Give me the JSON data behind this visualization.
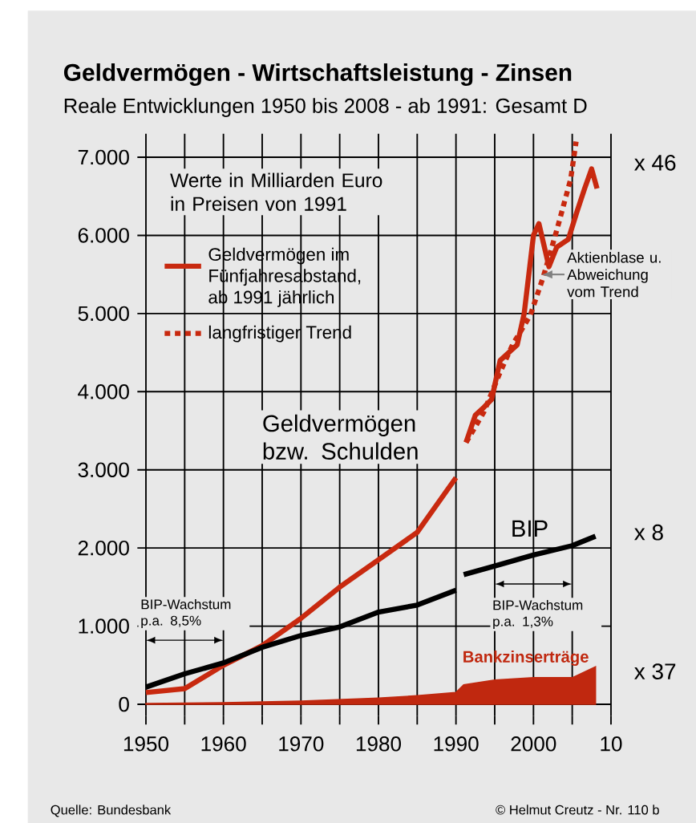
{
  "chart_data": {
    "type": "line",
    "title": "Geldvermögen - Wirtschaftsleistung - Zinsen",
    "subtitle": "Reale Entwicklungen 1950 bis 2008  -  ab 1991: Gesamt D",
    "xlim": [
      1950,
      2010
    ],
    "ylim": [
      -150,
      7300
    ],
    "xticks": [
      1950,
      {
        "value": 1955,
        "label": null
      },
      1960,
      {
        "value": 1965,
        "label": null
      },
      1970,
      {
        "value": 1975,
        "label": null
      },
      1980,
      {
        "value": 1985,
        "label": null
      },
      1990,
      {
        "value": 1995,
        "label": null
      },
      2000,
      {
        "value": 2005,
        "label": null
      },
      {
        "value": 2010,
        "label": "10"
      }
    ],
    "yticks": [
      0,
      {
        "value": 1000,
        "label": "1.000"
      },
      {
        "value": 2000,
        "label": "2.000"
      },
      {
        "value": 3000,
        "label": "3.000"
      },
      {
        "value": 4000,
        "label": "4.000"
      },
      {
        "value": 5000,
        "label": "5.000"
      },
      {
        "value": 6000,
        "label": "6.000"
      },
      {
        "value": 7000,
        "label": "7.000"
      }
    ],
    "grid": true,
    "legend": "top left",
    "marker": "none",
    "series": [
      {
        "name": "Geldvermögen im Fünfjahresabstand, ab 1991 jährlich",
        "color": "#c8290f",
        "line_style": "solid",
        "x": [
          1950,
          1955,
          1960,
          1965,
          1970,
          1975,
          1980,
          1985,
          1990,
          1990.5,
          1991.3,
          1992.5,
          1993.6,
          1994.6,
          1995.7,
          1996.8,
          1997.9,
          1998.8,
          2000,
          2000.7,
          2002,
          2003,
          2004.5,
          2005.6,
          2006.6,
          2007.5,
          2008.2
        ],
        "values": [
          150,
          200,
          500,
          750,
          1100,
          1500,
          1850,
          2200,
          2900,
          null,
          3350,
          3700,
          3800,
          3900,
          4400,
          4500,
          4600,
          5000,
          6000,
          6150,
          5600,
          5850,
          5950,
          6300,
          6600,
          6850,
          6600
        ]
      },
      {
        "name": "langfristiger Trend",
        "color": "#c8290f",
        "line_style": "dotted",
        "x": [
          1991.3,
          1993.6,
          1995.7,
          1997.3,
          1999.6,
          2001.3,
          2003.1,
          2004.8,
          2005.5
        ],
        "values": [
          3350,
          3740,
          4250,
          4600,
          4980,
          5480,
          6100,
          6720,
          7200
        ]
      },
      {
        "name": "BIP",
        "color": "#000000",
        "line_style": "solid",
        "x": [
          1950,
          1955,
          1960,
          1965,
          1970,
          1975,
          1980,
          1985,
          1990,
          1990.5,
          1991,
          1995,
          2000,
          2005,
          2008
        ],
        "values": [
          220,
          390,
          530,
          730,
          880,
          990,
          1180,
          1270,
          1460,
          null,
          1660,
          1770,
          1910,
          2030,
          2150
        ]
      },
      {
        "name": "Bankzinserträge",
        "type": "area",
        "color": "#c0280f",
        "x": [
          1950,
          1960,
          1970,
          1980,
          1985,
          1990,
          1991,
          1995,
          2000,
          2005,
          2008
        ],
        "values": [
          10,
          20,
          40,
          80,
          110,
          150,
          250,
          310,
          340,
          340,
          480
        ]
      }
    ],
    "annotations": [
      "Werte in Milliarden Euro in Preisen von 1991",
      "Geldvermögen bzw. Schulden",
      {
        "text": "Aktienblase u. Abweichung vom Trend",
        "x": 2001,
        "y": 5500
      },
      "BIP-Wachstum p.a. 8,5%",
      "BIP-Wachstum p.a. 1,3%",
      "x 46",
      "x 8",
      "x 37",
      "Quelle: Bundesbank",
      "© Helmut Creutz - Nr. 110 b"
    ]
  }
}
